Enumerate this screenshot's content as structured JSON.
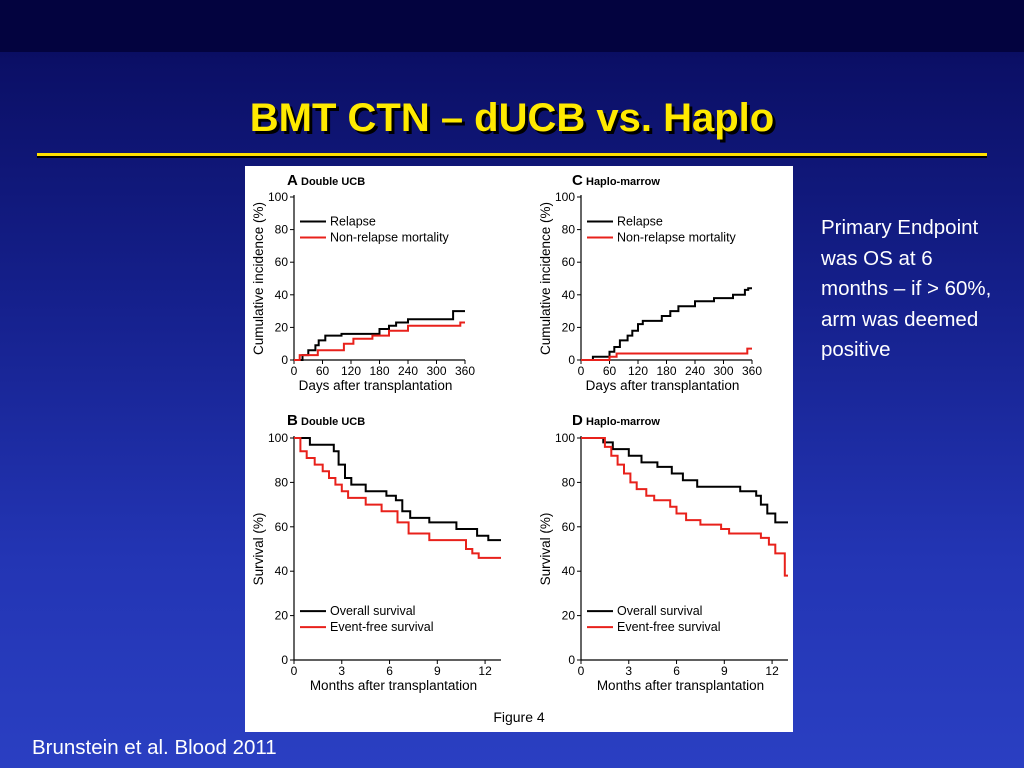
{
  "slide": {
    "title": "BMT CTN – dUCB vs. Haplo",
    "note": "Primary Endpoint was OS at 6 months – if > 60%, arm was deemed positive",
    "citation": "Brunstein et al. Blood 2011",
    "figure_caption": "Figure 4"
  },
  "colors": {
    "title": "#ffea00",
    "series1": "#000000",
    "series2": "#e8211b",
    "text": "#ffffff"
  },
  "chart_data": [
    {
      "id": "A",
      "letter": "A",
      "subtitle": "Double UCB",
      "type": "line",
      "xlabel": "Days after transplantation",
      "ylabel": "Cumulative incidence (%)",
      "xlim": [
        0,
        360
      ],
      "ylim": [
        0,
        100
      ],
      "xticks": [
        0,
        60,
        120,
        180,
        240,
        300,
        360
      ],
      "yticks": [
        0,
        20,
        40,
        60,
        80,
        100
      ],
      "legend": "top-left",
      "series": [
        {
          "name": "Relapse",
          "color": "#000000",
          "points": [
            [
              0,
              0
            ],
            [
              18,
              0
            ],
            [
              18,
              3
            ],
            [
              30,
              3
            ],
            [
              30,
              6
            ],
            [
              45,
              6
            ],
            [
              45,
              9
            ],
            [
              52,
              9
            ],
            [
              52,
              12
            ],
            [
              66,
              12
            ],
            [
              66,
              15
            ],
            [
              100,
              15
            ],
            [
              100,
              16
            ],
            [
              180,
              16
            ],
            [
              180,
              19
            ],
            [
              200,
              19
            ],
            [
              200,
              21
            ],
            [
              215,
              21
            ],
            [
              215,
              23
            ],
            [
              240,
              23
            ],
            [
              240,
              25
            ],
            [
              335,
              25
            ],
            [
              335,
              30
            ],
            [
              360,
              30
            ]
          ]
        },
        {
          "name": "Non-relapse mortality",
          "color": "#e8211b",
          "points": [
            [
              0,
              0
            ],
            [
              12,
              0
            ],
            [
              12,
              3
            ],
            [
              50,
              3
            ],
            [
              50,
              6
            ],
            [
              105,
              6
            ],
            [
              105,
              10
            ],
            [
              125,
              10
            ],
            [
              125,
              13
            ],
            [
              165,
              13
            ],
            [
              165,
              15
            ],
            [
              200,
              15
            ],
            [
              200,
              18
            ],
            [
              240,
              18
            ],
            [
              240,
              21
            ],
            [
              350,
              21
            ],
            [
              350,
              23
            ],
            [
              360,
              23
            ]
          ]
        }
      ]
    },
    {
      "id": "C",
      "letter": "C",
      "subtitle": "Haplo-marrow",
      "type": "line",
      "xlabel": "Days after transplantation",
      "ylabel": "Cumulative incidence (%)",
      "xlim": [
        0,
        360
      ],
      "ylim": [
        0,
        100
      ],
      "xticks": [
        0,
        60,
        120,
        180,
        240,
        300,
        360
      ],
      "yticks": [
        0,
        20,
        40,
        60,
        80,
        100
      ],
      "legend": "top-left",
      "series": [
        {
          "name": "Relapse",
          "color": "#000000",
          "points": [
            [
              0,
              0
            ],
            [
              25,
              0
            ],
            [
              25,
              2
            ],
            [
              60,
              2
            ],
            [
              60,
              5
            ],
            [
              70,
              5
            ],
            [
              70,
              8
            ],
            [
              82,
              8
            ],
            [
              82,
              12
            ],
            [
              98,
              12
            ],
            [
              98,
              15
            ],
            [
              108,
              15
            ],
            [
              108,
              18
            ],
            [
              120,
              18
            ],
            [
              120,
              22
            ],
            [
              130,
              22
            ],
            [
              130,
              24
            ],
            [
              170,
              24
            ],
            [
              170,
              27
            ],
            [
              188,
              27
            ],
            [
              188,
              30
            ],
            [
              205,
              30
            ],
            [
              205,
              33
            ],
            [
              240,
              33
            ],
            [
              240,
              36
            ],
            [
              280,
              36
            ],
            [
              280,
              38
            ],
            [
              320,
              38
            ],
            [
              320,
              40
            ],
            [
              345,
              40
            ],
            [
              345,
              43
            ],
            [
              352,
              43
            ],
            [
              352,
              44
            ],
            [
              360,
              44
            ]
          ]
        },
        {
          "name": "Non-relapse mortality",
          "color": "#e8211b",
          "points": [
            [
              0,
              0
            ],
            [
              60,
              0
            ],
            [
              60,
              2
            ],
            [
              75,
              2
            ],
            [
              75,
              4
            ],
            [
              350,
              4
            ],
            [
              350,
              7
            ],
            [
              360,
              7
            ]
          ]
        }
      ]
    },
    {
      "id": "B",
      "letter": "B",
      "subtitle": "Double UCB",
      "type": "line",
      "xlabel": "Months after transplantation",
      "ylabel": "Survival (%)",
      "xlim": [
        0,
        13
      ],
      "ylim": [
        0,
        100
      ],
      "xticks": [
        0,
        3,
        6,
        9,
        12
      ],
      "yticks": [
        0,
        20,
        40,
        60,
        80,
        100
      ],
      "legend": "bottom-left",
      "series": [
        {
          "name": "Overall survival",
          "color": "#000000",
          "points": [
            [
              0,
              100
            ],
            [
              1,
              100
            ],
            [
              1,
              97
            ],
            [
              2.5,
              97
            ],
            [
              2.5,
              94
            ],
            [
              2.8,
              94
            ],
            [
              2.8,
              88
            ],
            [
              3.2,
              88
            ],
            [
              3.2,
              82
            ],
            [
              3.6,
              82
            ],
            [
              3.6,
              79
            ],
            [
              4.5,
              79
            ],
            [
              4.5,
              76
            ],
            [
              5.8,
              76
            ],
            [
              5.8,
              74
            ],
            [
              6.4,
              74
            ],
            [
              6.4,
              72
            ],
            [
              6.8,
              72
            ],
            [
              6.8,
              67
            ],
            [
              7.3,
              67
            ],
            [
              7.3,
              64
            ],
            [
              8.5,
              64
            ],
            [
              8.5,
              62
            ],
            [
              10.2,
              62
            ],
            [
              10.2,
              59
            ],
            [
              11.5,
              59
            ],
            [
              11.5,
              56
            ],
            [
              12.2,
              56
            ],
            [
              12.2,
              54
            ],
            [
              13,
              54
            ]
          ]
        },
        {
          "name": "Event-free survival",
          "color": "#e8211b",
          "points": [
            [
              0,
              100
            ],
            [
              0.4,
              100
            ],
            [
              0.4,
              94
            ],
            [
              0.8,
              94
            ],
            [
              0.8,
              91
            ],
            [
              1.3,
              91
            ],
            [
              1.3,
              88
            ],
            [
              1.8,
              88
            ],
            [
              1.8,
              85
            ],
            [
              2.2,
              85
            ],
            [
              2.2,
              82
            ],
            [
              2.6,
              82
            ],
            [
              2.6,
              79
            ],
            [
              3,
              79
            ],
            [
              3,
              76
            ],
            [
              3.4,
              76
            ],
            [
              3.4,
              73
            ],
            [
              4.5,
              73
            ],
            [
              4.5,
              70
            ],
            [
              5.5,
              70
            ],
            [
              5.5,
              67
            ],
            [
              6.5,
              67
            ],
            [
              6.5,
              62
            ],
            [
              7.2,
              62
            ],
            [
              7.2,
              57
            ],
            [
              8.5,
              57
            ],
            [
              8.5,
              54
            ],
            [
              10.8,
              54
            ],
            [
              10.8,
              50
            ],
            [
              11.2,
              50
            ],
            [
              11.2,
              48
            ],
            [
              11.6,
              48
            ],
            [
              11.6,
              46
            ],
            [
              13,
              46
            ]
          ]
        }
      ]
    },
    {
      "id": "D",
      "letter": "D",
      "subtitle": "Haplo-marrow",
      "type": "line",
      "xlabel": "Months after transplantation",
      "ylabel": "Survival (%)",
      "xlim": [
        0,
        13
      ],
      "ylim": [
        0,
        100
      ],
      "xticks": [
        0,
        3,
        6,
        9,
        12
      ],
      "yticks": [
        0,
        20,
        40,
        60,
        80,
        100
      ],
      "legend": "bottom-left",
      "series": [
        {
          "name": "Overall survival",
          "color": "#000000",
          "points": [
            [
              0,
              100
            ],
            [
              1.4,
              100
            ],
            [
              1.4,
              98
            ],
            [
              2,
              98
            ],
            [
              2,
              95
            ],
            [
              3,
              95
            ],
            [
              3,
              92
            ],
            [
              3.8,
              92
            ],
            [
              3.8,
              89
            ],
            [
              4.8,
              89
            ],
            [
              4.8,
              87
            ],
            [
              5.7,
              87
            ],
            [
              5.7,
              84
            ],
            [
              6.4,
              84
            ],
            [
              6.4,
              81
            ],
            [
              7.3,
              81
            ],
            [
              7.3,
              78
            ],
            [
              10,
              78
            ],
            [
              10,
              76
            ],
            [
              11,
              76
            ],
            [
              11,
              74
            ],
            [
              11.3,
              74
            ],
            [
              11.3,
              70
            ],
            [
              11.7,
              70
            ],
            [
              11.7,
              66
            ],
            [
              12.2,
              66
            ],
            [
              12.2,
              62
            ],
            [
              13,
              62
            ]
          ]
        },
        {
          "name": "Event-free survival",
          "color": "#e8211b",
          "points": [
            [
              0,
              100
            ],
            [
              1.5,
              100
            ],
            [
              1.5,
              96
            ],
            [
              1.9,
              96
            ],
            [
              1.9,
              92
            ],
            [
              2.3,
              92
            ],
            [
              2.3,
              88
            ],
            [
              2.7,
              88
            ],
            [
              2.7,
              84
            ],
            [
              3.1,
              84
            ],
            [
              3.1,
              80
            ],
            [
              3.5,
              80
            ],
            [
              3.5,
              77
            ],
            [
              4.1,
              77
            ],
            [
              4.1,
              74
            ],
            [
              4.6,
              74
            ],
            [
              4.6,
              72
            ],
            [
              5.6,
              72
            ],
            [
              5.6,
              69
            ],
            [
              6,
              69
            ],
            [
              6,
              66
            ],
            [
              6.6,
              66
            ],
            [
              6.6,
              63
            ],
            [
              7.5,
              63
            ],
            [
              7.5,
              61
            ],
            [
              8.8,
              61
            ],
            [
              8.8,
              59
            ],
            [
              9.3,
              59
            ],
            [
              9.3,
              57
            ],
            [
              11.3,
              57
            ],
            [
              11.3,
              55
            ],
            [
              11.8,
              55
            ],
            [
              11.8,
              52
            ],
            [
              12.2,
              52
            ],
            [
              12.2,
              48
            ],
            [
              12.8,
              48
            ],
            [
              12.8,
              38
            ],
            [
              13,
              38
            ]
          ]
        }
      ]
    }
  ]
}
